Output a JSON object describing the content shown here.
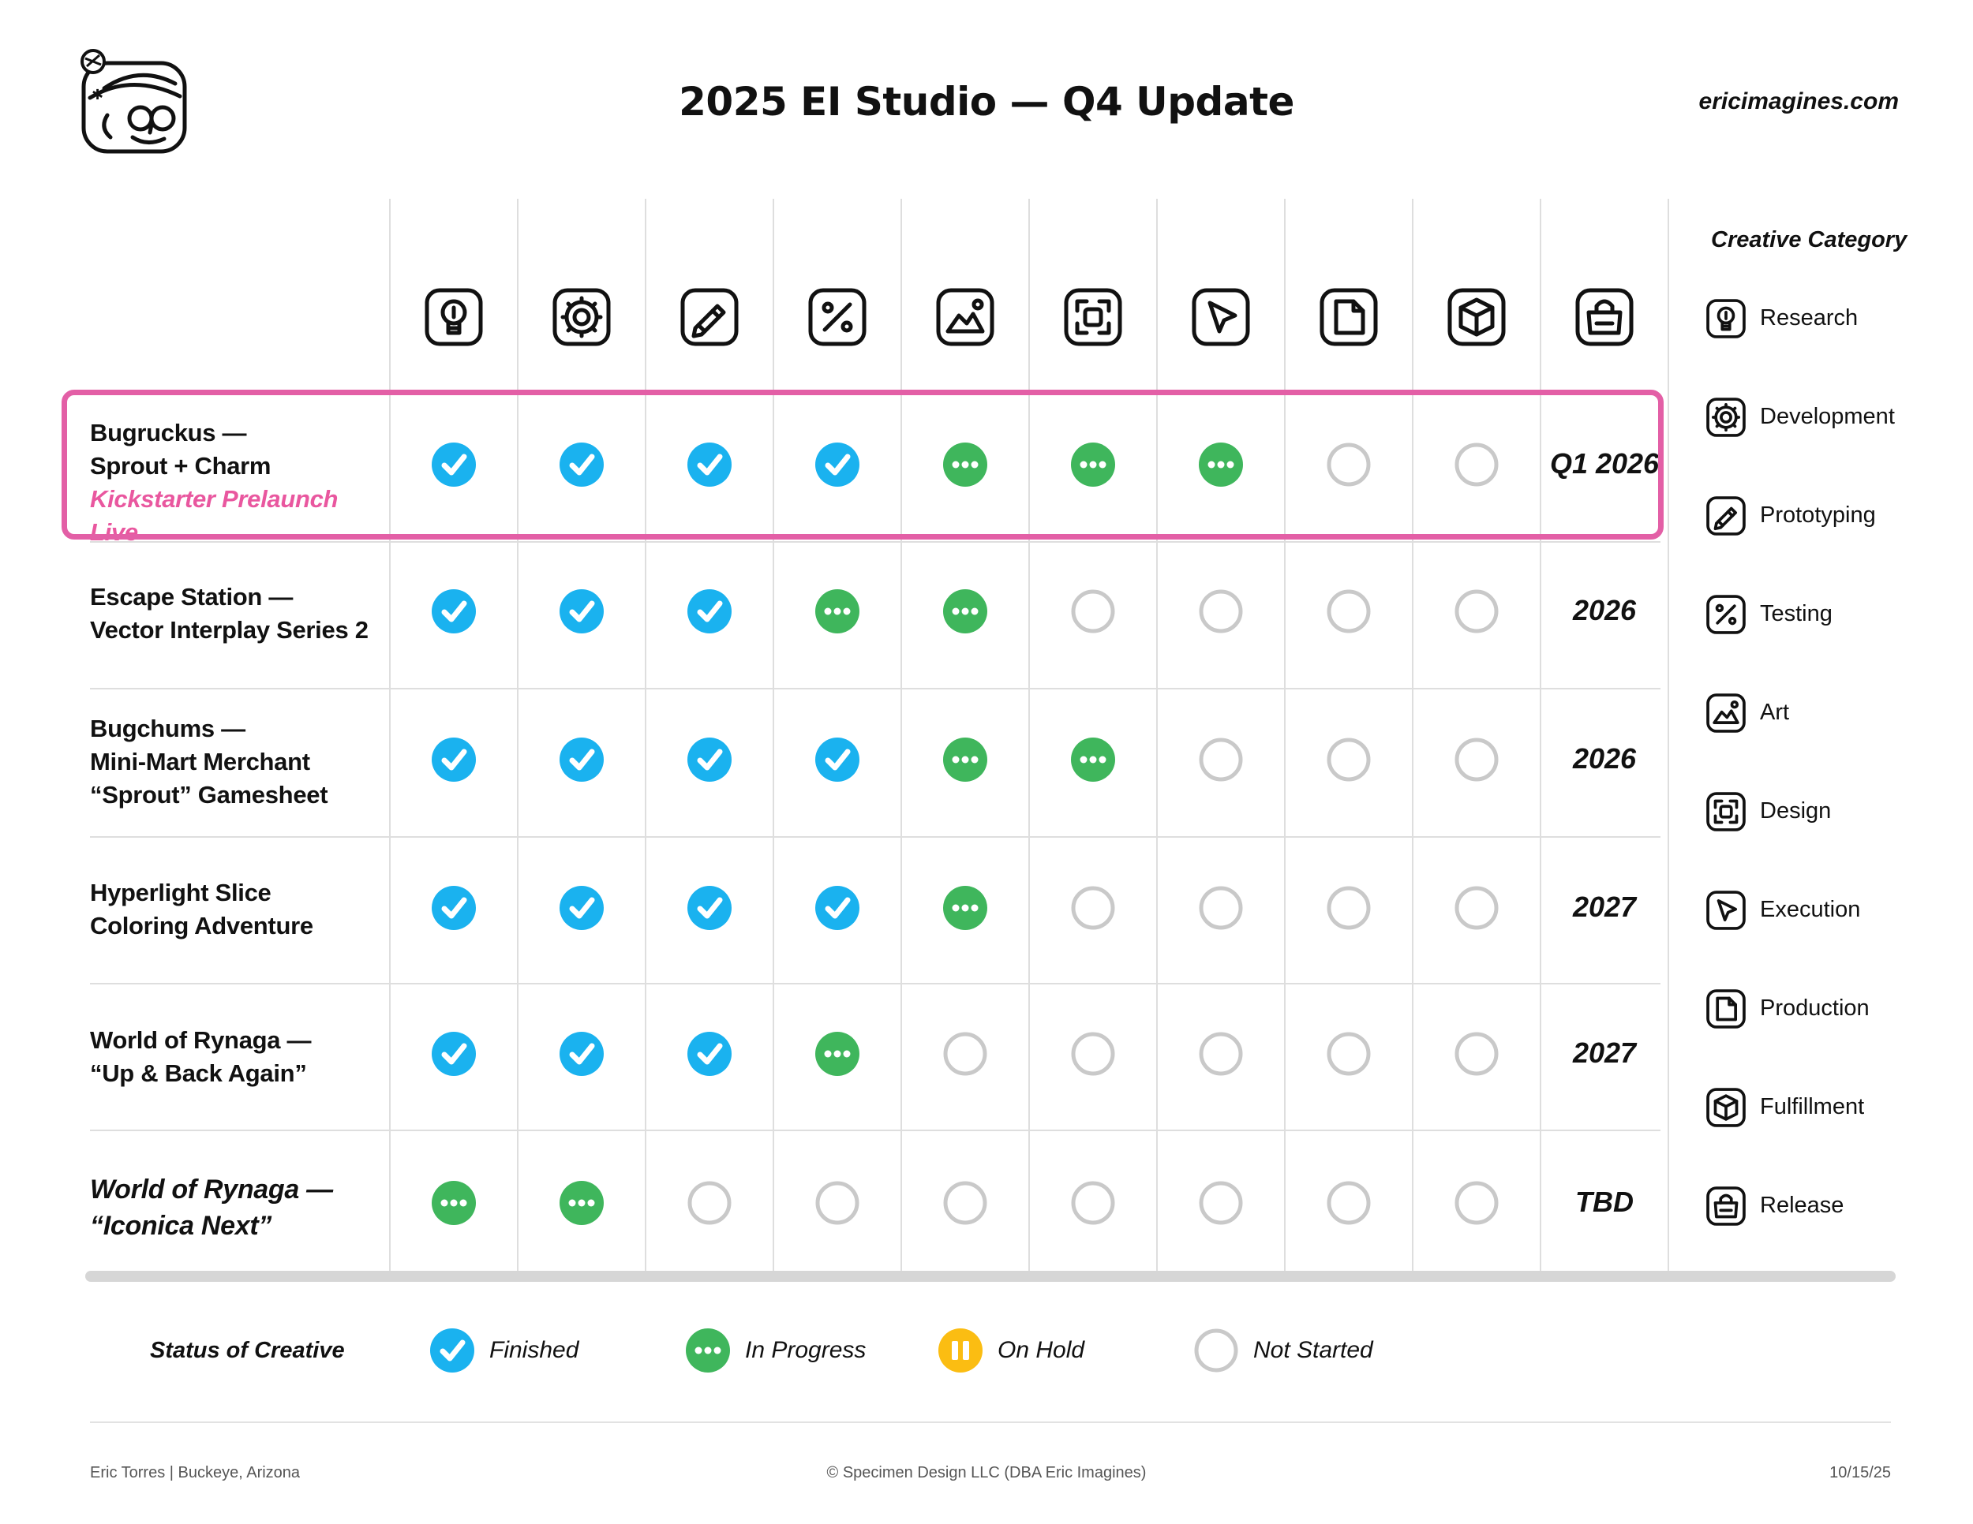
{
  "header": {
    "title": "2025 EI Studio — Q4 Update",
    "site": "ericimagines.com"
  },
  "stage_icons": [
    "lightbulb-icon",
    "gear-icon",
    "pencil-icon",
    "percent-icon",
    "mountain-icon",
    "focus-frame-icon",
    "cursor-arrow-icon",
    "document-icon",
    "box-icon",
    "shopping-bag-icon"
  ],
  "projects": [
    {
      "lines": [
        "Bugruckus —",
        "Sprout + Charm"
      ],
      "highlight": "Kickstarter Prelaunch Live",
      "italic": false,
      "status": [
        "finished",
        "finished",
        "finished",
        "finished",
        "in-progress",
        "in-progress",
        "in-progress",
        "not-started",
        "not-started"
      ],
      "date": "Q1 2026"
    },
    {
      "lines": [
        "Escape Station —",
        "Vector Interplay Series 2"
      ],
      "italic": false,
      "status": [
        "finished",
        "finished",
        "finished",
        "in-progress",
        "in-progress",
        "not-started",
        "not-started",
        "not-started",
        "not-started"
      ],
      "date": "2026"
    },
    {
      "lines": [
        "Bugchums —",
        "Mini-Mart Merchant",
        "“Sprout” Gamesheet"
      ],
      "italic": false,
      "status": [
        "finished",
        "finished",
        "finished",
        "finished",
        "in-progress",
        "in-progress",
        "not-started",
        "not-started",
        "not-started"
      ],
      "date": "2026"
    },
    {
      "lines": [
        "Hyperlight Slice",
        "Coloring Adventure"
      ],
      "italic": false,
      "status": [
        "finished",
        "finished",
        "finished",
        "finished",
        "in-progress",
        "not-started",
        "not-started",
        "not-started",
        "not-started"
      ],
      "date": "2027"
    },
    {
      "lines": [
        "World of Rynaga —",
        "“Up & Back Again”"
      ],
      "italic": false,
      "status": [
        "finished",
        "finished",
        "finished",
        "in-progress",
        "not-started",
        "not-started",
        "not-started",
        "not-started",
        "not-started"
      ],
      "date": "2027"
    },
    {
      "lines": [
        "World of Rynaga —",
        "“Iconica Next”"
      ],
      "italic": true,
      "status": [
        "in-progress",
        "in-progress",
        "not-started",
        "not-started",
        "not-started",
        "not-started",
        "not-started",
        "not-started",
        "not-started"
      ],
      "date": "TBD"
    }
  ],
  "sidebar": {
    "title": "Creative Category",
    "categories": [
      {
        "label": "Research",
        "icon": "lightbulb-icon"
      },
      {
        "label": "Development",
        "icon": "gear-icon"
      },
      {
        "label": "Prototyping",
        "icon": "pencil-icon"
      },
      {
        "label": "Testing",
        "icon": "percent-icon"
      },
      {
        "label": "Art",
        "icon": "mountain-icon"
      },
      {
        "label": "Design",
        "icon": "focus-frame-icon"
      },
      {
        "label": "Execution",
        "icon": "cursor-arrow-icon"
      },
      {
        "label": "Production",
        "icon": "document-icon"
      },
      {
        "label": "Fulfillment",
        "icon": "box-icon"
      },
      {
        "label": "Release",
        "icon": "shopping-bag-icon"
      }
    ]
  },
  "legend": {
    "title": "Status of Creative",
    "items": [
      {
        "status": "finished",
        "label": "Finished"
      },
      {
        "status": "in-progress",
        "label": "In Progress"
      },
      {
        "status": "on-hold",
        "label": "On Hold"
      },
      {
        "status": "not-started",
        "label": "Not Started"
      }
    ]
  },
  "colors": {
    "finished": "#1ab2ef",
    "in_progress": "#3fb65c",
    "on_hold": "#fbbd12",
    "not_started": "#c9c9c9",
    "highlight": "#e35fa6"
  },
  "footer": {
    "left": "Eric Torres  |  Buckeye, Arizona",
    "center": "© Specimen Design LLC (DBA Eric Imagines)",
    "right": "10/15/25"
  }
}
